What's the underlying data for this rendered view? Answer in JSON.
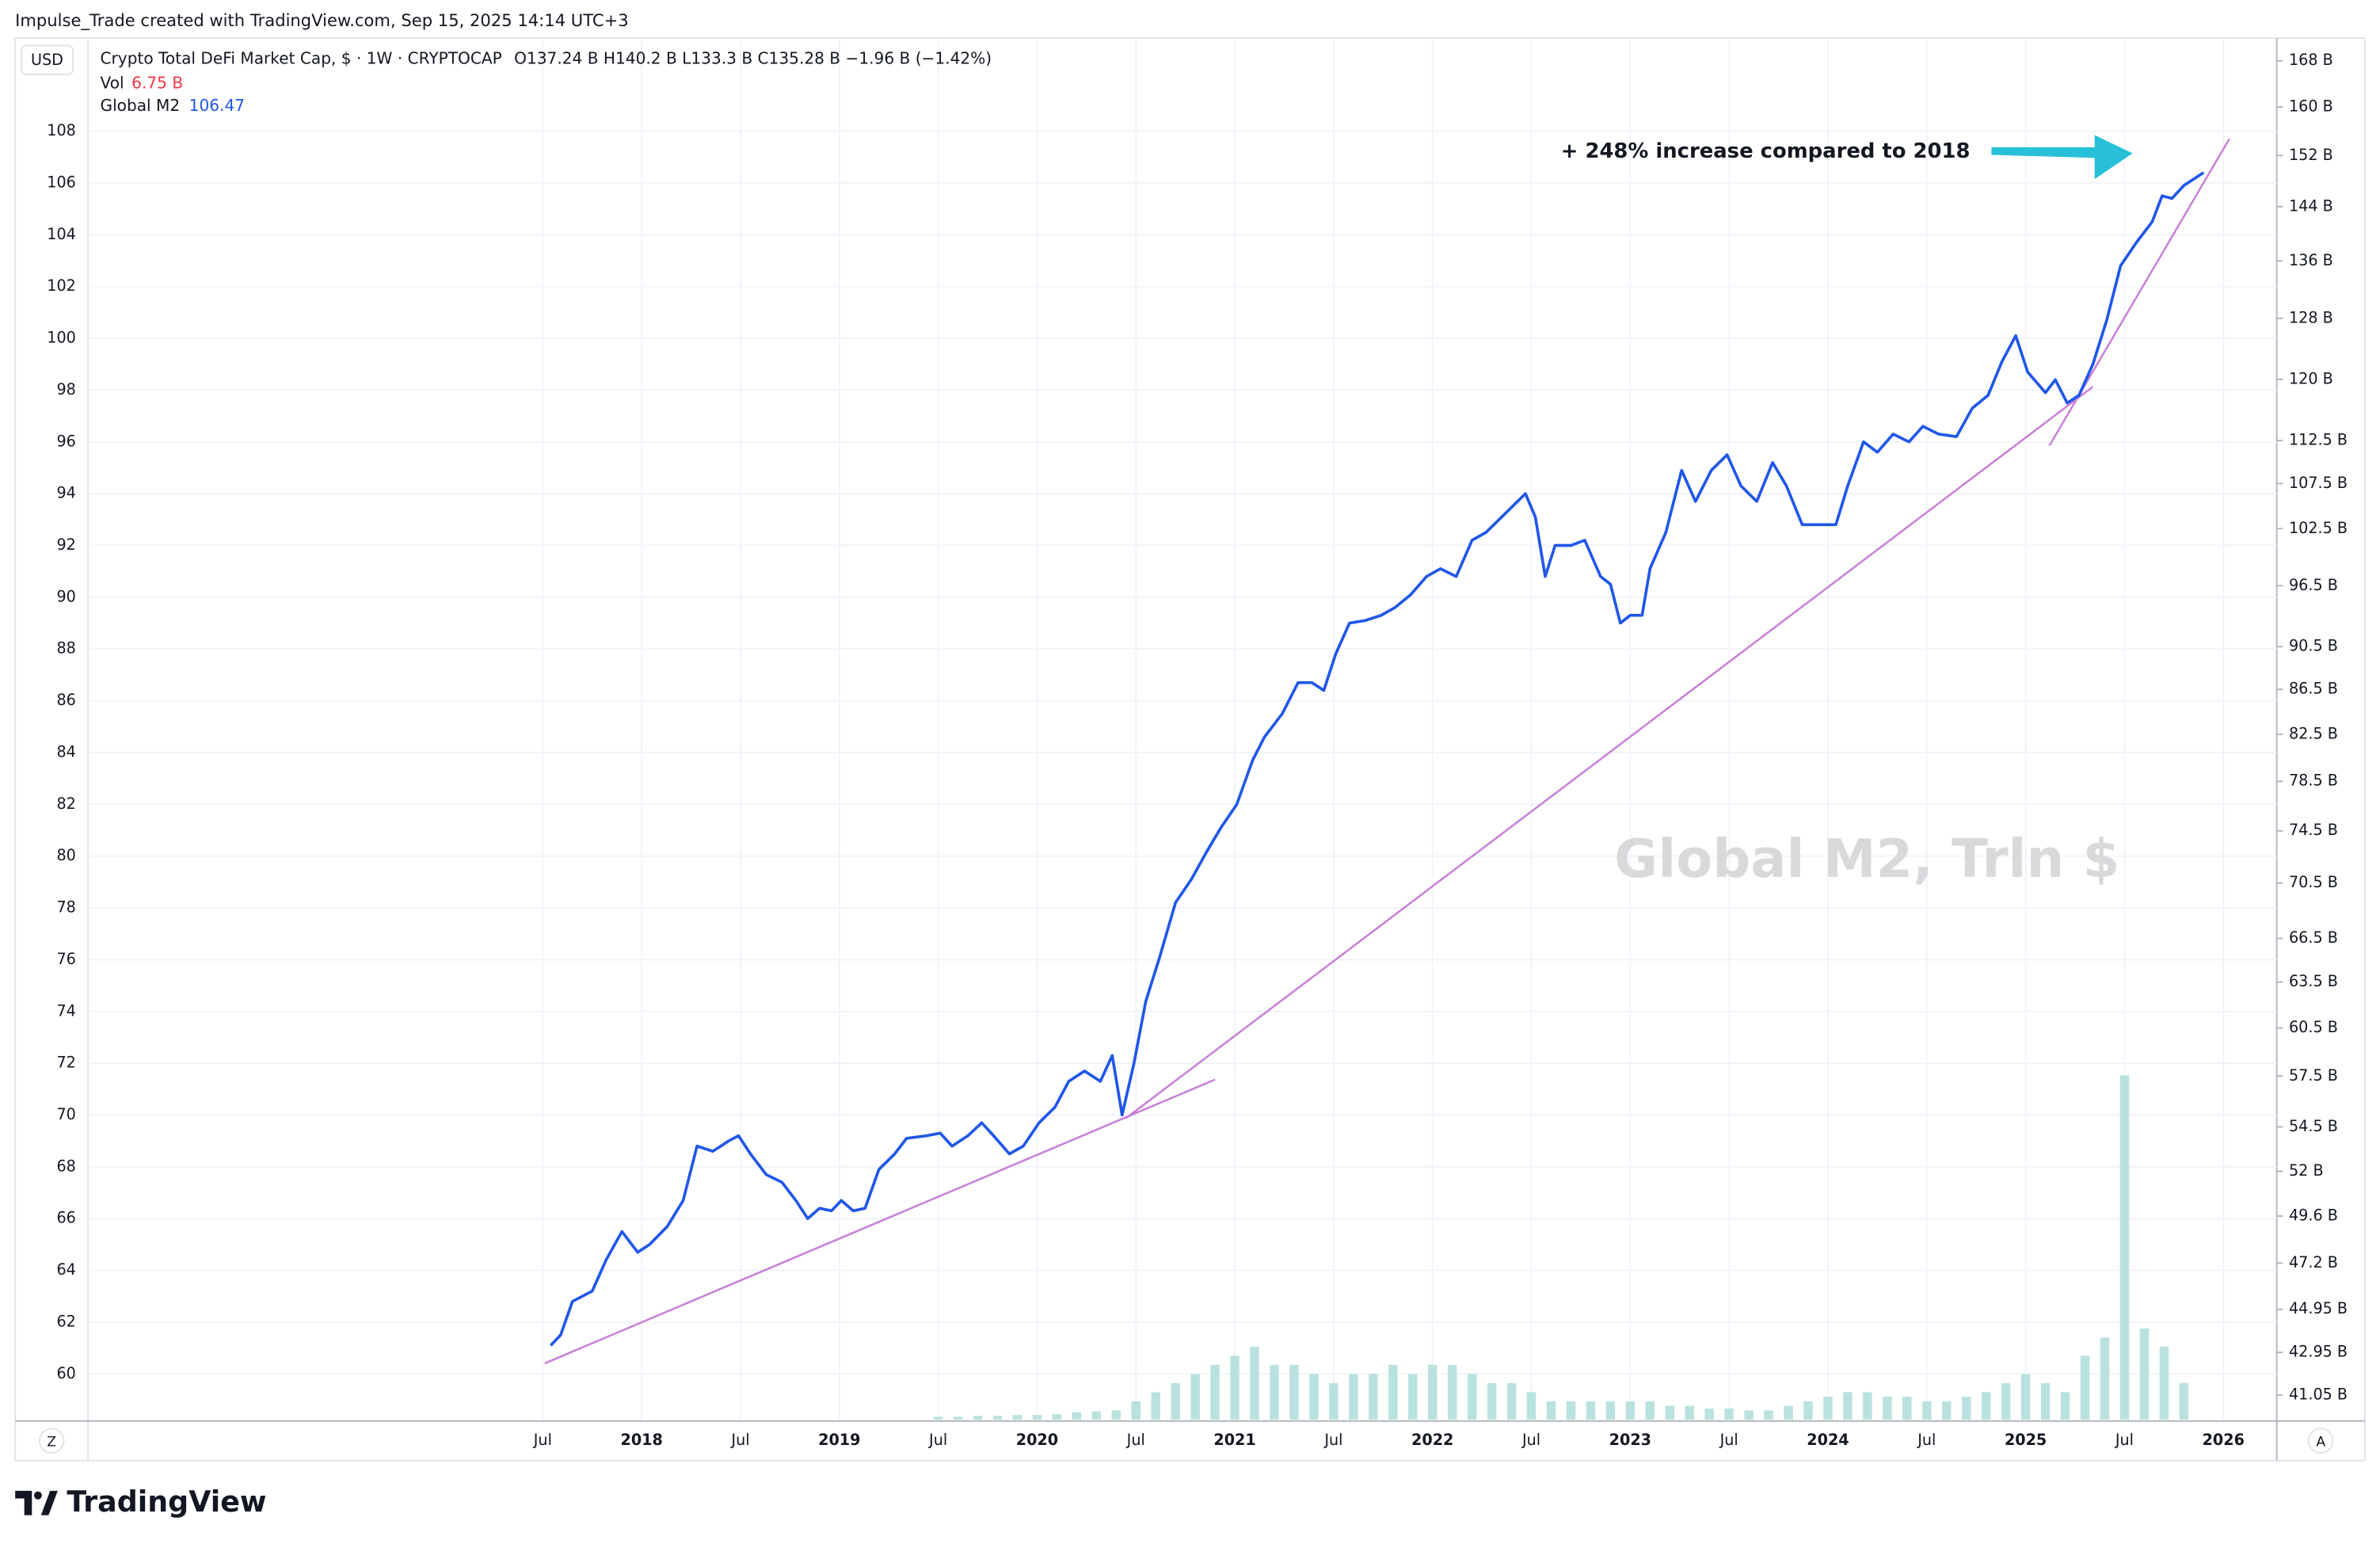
{
  "header": {
    "credit": "Impulse_Trade created with TradingView.com, Sep 15, 2025 14:14 UTC+3",
    "currency": "USD",
    "symbol": "Crypto Total DeFi Market Cap, $ · 1W · CRYPTOCAP",
    "ohlc": "O137.24 B  H140.2 B  L133.3 B  C135.28 B  −1.96 B (−1.42%)",
    "vol_label": "Vol",
    "vol_value": "6.75 B",
    "m2_value": 106.47
  },
  "chart_data": {
    "type": "line",
    "watermark": "Global M2, Trln $",
    "annotation": "+ 248% increase compared to 2018",
    "xlim": [
      2015.2,
      2026.27
    ],
    "xticks": [
      {
        "value": 2017.5,
        "label": "Jul"
      },
      2018,
      {
        "value": 2018.5,
        "label": "Jul"
      },
      2019,
      {
        "value": 2019.5,
        "label": "Jul"
      },
      2020,
      {
        "value": 2020.5,
        "label": "Jul"
      },
      2021,
      {
        "value": 2021.5,
        "label": "Jul"
      },
      2022,
      {
        "value": 2022.5,
        "label": "Jul"
      },
      2023,
      {
        "value": 2023.5,
        "label": "Jul"
      },
      2024,
      {
        "value": 2024.5,
        "label": "Jul"
      },
      2025,
      {
        "value": 2025.5,
        "label": "Jul"
      },
      2026
    ],
    "ylim": [
      58.24,
      111.6
    ],
    "yticks": [
      60,
      62,
      64,
      66,
      68,
      70,
      72,
      74,
      76,
      78,
      80,
      82,
      84,
      86,
      88,
      90,
      92,
      94,
      96,
      98,
      100,
      102,
      104,
      106,
      108
    ],
    "y2log": true,
    "y2lim": [
      40.01,
      172.1
    ],
    "y2ticks": [
      {
        "value": 168,
        "label": "168 B"
      },
      {
        "value": 160,
        "label": "160 B"
      },
      {
        "value": 152,
        "label": "152 B"
      },
      {
        "value": 144,
        "label": "144 B"
      },
      {
        "value": 136,
        "label": "136 B"
      },
      {
        "value": 128,
        "label": "128 B"
      },
      {
        "value": 120,
        "label": "120 B"
      },
      {
        "value": 112.5,
        "label": "112.5 B"
      },
      {
        "value": 107.5,
        "label": "107.5 B"
      },
      {
        "value": 102.5,
        "label": "102.5 B"
      },
      {
        "value": 96.5,
        "label": "96.5 B"
      },
      {
        "value": 90.5,
        "label": "90.5 B"
      },
      {
        "value": 86.5,
        "label": "86.5 B"
      },
      {
        "value": 82.5,
        "label": "82.5 B"
      },
      {
        "value": 78.5,
        "label": "78.5 B"
      },
      {
        "value": 74.5,
        "label": "74.5 B"
      },
      {
        "value": 70.5,
        "label": "70.5 B"
      },
      {
        "value": 66.5,
        "label": "66.5 B"
      },
      {
        "value": 63.5,
        "label": "63.5 B"
      },
      {
        "value": 60.5,
        "label": "60.5 B"
      },
      {
        "value": 57.5,
        "label": "57.5 B"
      },
      {
        "value": 54.5,
        "label": "54.5 B"
      },
      {
        "value": 52,
        "label": "52 B"
      },
      {
        "value": 49.6,
        "label": "49.6 B"
      },
      {
        "value": 47.2,
        "label": "47.2 B"
      },
      {
        "value": 44.95,
        "label": "44.95 B"
      },
      {
        "value": 42.95,
        "label": "42.95 B"
      },
      {
        "value": 41.05,
        "label": "41.05 B"
      }
    ],
    "grid": true,
    "x": [
      2017.54,
      2017.59,
      2017.65,
      2017.75,
      2017.82,
      2017.9,
      2017.98,
      2018.04,
      2018.13,
      2018.21,
      2018.28,
      2018.36,
      2018.44,
      2018.49,
      2018.55,
      2018.63,
      2018.71,
      2018.78,
      2018.84,
      2018.9,
      2018.96,
      2019.01,
      2019.07,
      2019.13,
      2019.2,
      2019.28,
      2019.34,
      2019.44,
      2019.51,
      2019.57,
      2019.65,
      2019.72,
      2019.78,
      2019.86,
      2019.93,
      2020.01,
      2020.09,
      2020.16,
      2020.24,
      2020.32,
      2020.38,
      2020.43,
      2020.49,
      2020.55,
      2020.62,
      2020.7,
      2020.78,
      2020.86,
      2020.93,
      2021.01,
      2021.09,
      2021.15,
      2021.24,
      2021.32,
      2021.39,
      2021.45,
      2021.51,
      2021.58,
      2021.66,
      2021.74,
      2021.81,
      2021.89,
      2021.97,
      2022.04,
      2022.12,
      2022.2,
      2022.27,
      2022.35,
      2022.43,
      2022.47,
      2022.52,
      2022.57,
      2022.62,
      2022.7,
      2022.77,
      2022.85,
      2022.9,
      2022.95,
      2023.0,
      2023.06,
      2023.1,
      2023.18,
      2023.26,
      2023.33,
      2023.41,
      2023.49,
      2023.56,
      2023.64,
      2023.72,
      2023.79,
      2023.87,
      2023.95,
      2024.04,
      2024.1,
      2024.18,
      2024.25,
      2024.33,
      2024.41,
      2024.48,
      2024.56,
      2024.65,
      2024.73,
      2024.81,
      2024.88,
      2024.95,
      2025.01,
      2025.1,
      2025.15,
      2025.21,
      2025.27,
      2025.34,
      2025.41,
      2025.48,
      2025.56,
      2025.64,
      2025.69,
      2025.74,
      2025.8,
      2025.86,
      2025.9
    ],
    "series": [
      {
        "name": "Global M2",
        "color": "#2157e8",
        "values": [
          61.1,
          61.5,
          62.8,
          63.2,
          64.4,
          65.5,
          64.7,
          65.0,
          65.7,
          66.7,
          68.8,
          68.6,
          69.0,
          69.2,
          68.5,
          67.7,
          67.4,
          66.7,
          66.0,
          66.4,
          66.3,
          66.7,
          66.3,
          66.4,
          67.9,
          68.5,
          69.1,
          69.2,
          69.3,
          68.8,
          69.2,
          69.7,
          69.2,
          68.5,
          68.8,
          69.7,
          70.3,
          71.3,
          71.7,
          71.3,
          72.3,
          70.0,
          72.0,
          74.4,
          76.1,
          78.2,
          79.1,
          80.2,
          81.1,
          82.0,
          83.7,
          84.6,
          85.5,
          86.7,
          86.7,
          86.4,
          87.8,
          89.0,
          89.1,
          89.3,
          89.6,
          90.1,
          90.8,
          91.1,
          90.8,
          92.2,
          92.5,
          93.1,
          93.7,
          94.0,
          93.1,
          90.8,
          92.0,
          92.0,
          92.2,
          90.8,
          90.5,
          89.0,
          89.3,
          89.3,
          91.1,
          92.5,
          94.9,
          93.7,
          94.9,
          95.5,
          94.3,
          93.7,
          95.2,
          94.3,
          92.8,
          92.8,
          92.8,
          94.3,
          96.0,
          95.6,
          96.3,
          96.0,
          96.6,
          96.3,
          96.2,
          97.3,
          97.8,
          99.1,
          100.1,
          98.7,
          97.9,
          98.4,
          97.5,
          97.8,
          99.0,
          100.7,
          102.8,
          103.7,
          104.5,
          105.5,
          105.4,
          105.9,
          106.2,
          106.4
        ]
      }
    ],
    "volume": {
      "color": "#b9e2de",
      "ylim": [
        0,
        40
      ],
      "x": [
        2019.5,
        2019.6,
        2019.7,
        2019.8,
        2019.9,
        2020.0,
        2020.1,
        2020.2,
        2020.3,
        2020.4,
        2020.5,
        2020.6,
        2020.7,
        2020.8,
        2020.9,
        2021.0,
        2021.1,
        2021.2,
        2021.3,
        2021.4,
        2021.5,
        2021.6,
        2021.7,
        2021.8,
        2021.9,
        2022.0,
        2022.1,
        2022.2,
        2022.3,
        2022.4,
        2022.5,
        2022.6,
        2022.7,
        2022.8,
        2022.9,
        2023.0,
        2023.1,
        2023.2,
        2023.3,
        2023.4,
        2023.5,
        2023.6,
        2023.7,
        2023.8,
        2023.9,
        2024.0,
        2024.1,
        2024.2,
        2024.3,
        2024.4,
        2024.5,
        2024.6,
        2024.7,
        2024.8,
        2024.9,
        2025.0,
        2025.1,
        2025.2,
        2025.3,
        2025.4,
        2025.5,
        2025.6,
        2025.7,
        2025.8
      ],
      "values": [
        0.3,
        0.3,
        0.4,
        0.4,
        0.5,
        0.5,
        0.6,
        0.8,
        0.9,
        1.0,
        2,
        3,
        4,
        5,
        6,
        7,
        8,
        6,
        6,
        5,
        4,
        5,
        5,
        6,
        5,
        6,
        6,
        5,
        4,
        4,
        3,
        2,
        2,
        2,
        2,
        2,
        2,
        1.5,
        1.5,
        1.2,
        1.2,
        1,
        1,
        1.5,
        2,
        2.5,
        3,
        3,
        2.5,
        2.5,
        2,
        2,
        2.5,
        3,
        4,
        5,
        4,
        3,
        7,
        9,
        37.8,
        10,
        8,
        4
      ]
    },
    "trendlines": {
      "color": "#c97fd8",
      "lines": [
        {
          "x": [
            2017.51,
            2020.9
          ],
          "y": [
            60.41,
            71.37
          ]
        },
        {
          "x": [
            2020.45,
            2025.34
          ],
          "y": [
            69.88,
            98.13
          ]
        },
        {
          "x": [
            2025.12,
            2026.03
          ],
          "y": [
            95.85,
            107.7
          ]
        }
      ]
    }
  },
  "footer": {
    "left_button": "Z",
    "right_button": "A",
    "logo": "TradingView"
  }
}
